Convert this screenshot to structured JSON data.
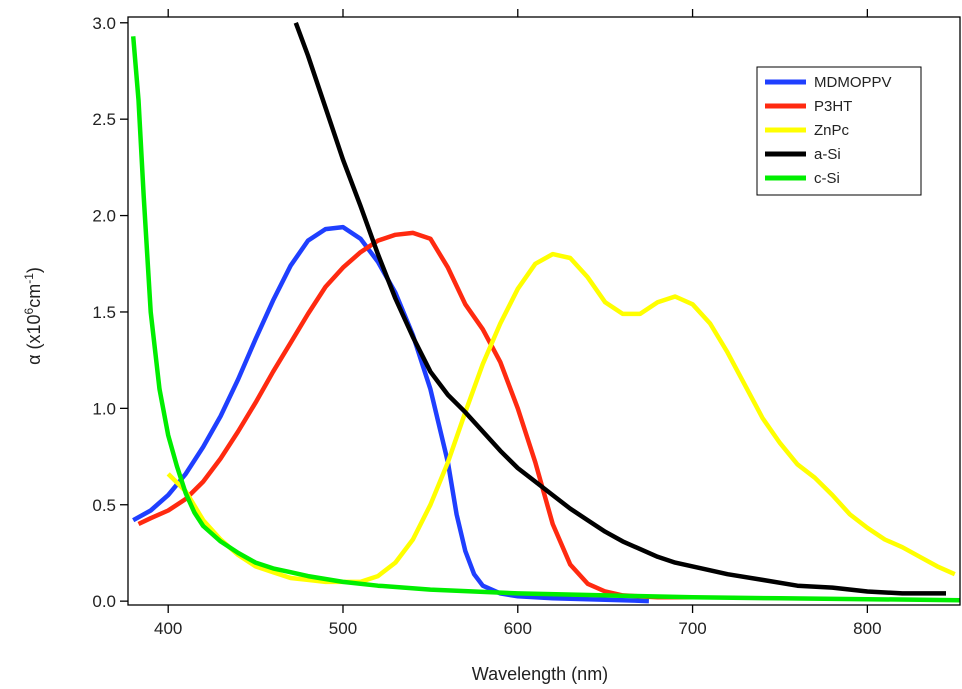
{
  "chart_data": {
    "type": "line",
    "title": "",
    "xlabel": "Wavelength  (nm)",
    "ylabel_main": "α (x10",
    "ylabel_sup1": "6",
    "ylabel_mid": "cm",
    "ylabel_sup2": "-1",
    "ylabel_end": ")",
    "xlim": [
      377,
      853
    ],
    "ylim": [
      -0.02,
      3.03
    ],
    "xticks": [
      400,
      500,
      600,
      700,
      800
    ],
    "yticks": [
      0.0,
      0.5,
      1.0,
      1.5,
      2.0,
      2.5,
      3.0
    ],
    "xtick_labels": [
      "400",
      "500",
      "600",
      "700",
      "800"
    ],
    "ytick_labels": [
      "0.0",
      "0.5",
      "1.0",
      "1.5",
      "2.0",
      "2.5",
      "3.0"
    ],
    "grid": false,
    "legend": "top-right",
    "series": [
      {
        "name": "MDMOPPV",
        "color": "#1f3fff",
        "x": [
          380,
          390,
          400,
          410,
          420,
          430,
          440,
          450,
          460,
          470,
          480,
          490,
          500,
          510,
          520,
          530,
          540,
          550,
          560,
          565,
          570,
          575,
          580,
          590,
          600,
          620,
          640,
          660,
          675
        ],
        "y": [
          0.42,
          0.47,
          0.55,
          0.66,
          0.8,
          0.96,
          1.15,
          1.36,
          1.56,
          1.74,
          1.87,
          1.93,
          1.94,
          1.88,
          1.76,
          1.6,
          1.38,
          1.1,
          0.72,
          0.45,
          0.26,
          0.14,
          0.08,
          0.04,
          0.025,
          0.015,
          0.01,
          0.005,
          0.0
        ]
      },
      {
        "name": "P3HT",
        "color": "#ff2a10",
        "x": [
          383,
          390,
          400,
          410,
          420,
          430,
          440,
          450,
          460,
          470,
          480,
          490,
          500,
          510,
          520,
          530,
          540,
          550,
          560,
          570,
          580,
          590,
          600,
          610,
          620,
          630,
          640,
          650,
          660,
          680,
          700
        ],
        "y": [
          0.4,
          0.43,
          0.47,
          0.53,
          0.62,
          0.74,
          0.88,
          1.03,
          1.19,
          1.34,
          1.49,
          1.63,
          1.73,
          1.81,
          1.87,
          1.9,
          1.91,
          1.88,
          1.73,
          1.54,
          1.41,
          1.24,
          1.0,
          0.72,
          0.4,
          0.19,
          0.09,
          0.05,
          0.03,
          0.02,
          0.02
        ]
      },
      {
        "name": "ZnPc",
        "color": "#ffff00",
        "x": [
          400,
          410,
          420,
          430,
          440,
          450,
          460,
          470,
          480,
          490,
          500,
          510,
          520,
          530,
          540,
          550,
          560,
          570,
          580,
          590,
          600,
          610,
          620,
          630,
          640,
          650,
          660,
          670,
          680,
          690,
          700,
          710,
          720,
          730,
          740,
          750,
          760,
          770,
          780,
          790,
          800,
          810,
          820,
          830,
          840,
          850
        ],
        "y": [
          0.66,
          0.57,
          0.42,
          0.32,
          0.24,
          0.18,
          0.15,
          0.12,
          0.11,
          0.1,
          0.1,
          0.1,
          0.13,
          0.2,
          0.32,
          0.5,
          0.72,
          0.98,
          1.23,
          1.44,
          1.62,
          1.75,
          1.8,
          1.78,
          1.68,
          1.55,
          1.49,
          1.49,
          1.55,
          1.58,
          1.54,
          1.44,
          1.29,
          1.12,
          0.95,
          0.82,
          0.71,
          0.64,
          0.55,
          0.45,
          0.38,
          0.32,
          0.28,
          0.23,
          0.18,
          0.14
        ]
      },
      {
        "name": "a-Si",
        "color": "#000000",
        "x": [
          473,
          480,
          490,
          500,
          510,
          520,
          530,
          540,
          550,
          560,
          570,
          580,
          590,
          600,
          610,
          620,
          630,
          640,
          650,
          660,
          670,
          680,
          690,
          700,
          710,
          720,
          740,
          760,
          780,
          800,
          820,
          845
        ],
        "y": [
          3.0,
          2.83,
          2.56,
          2.29,
          2.05,
          1.8,
          1.57,
          1.37,
          1.19,
          1.07,
          0.98,
          0.88,
          0.78,
          0.69,
          0.62,
          0.55,
          0.48,
          0.42,
          0.36,
          0.31,
          0.27,
          0.23,
          0.2,
          0.18,
          0.16,
          0.14,
          0.11,
          0.08,
          0.07,
          0.05,
          0.04,
          0.04
        ]
      },
      {
        "name": "c-Si",
        "color": "#00ee00",
        "x": [
          380,
          383,
          386,
          390,
          395,
          400,
          405,
          410,
          415,
          420,
          430,
          440,
          450,
          460,
          470,
          480,
          500,
          520,
          550,
          600,
          650,
          700,
          750,
          800,
          853
        ],
        "y": [
          2.93,
          2.6,
          2.1,
          1.5,
          1.1,
          0.86,
          0.7,
          0.56,
          0.46,
          0.39,
          0.31,
          0.25,
          0.2,
          0.17,
          0.15,
          0.13,
          0.1,
          0.08,
          0.06,
          0.04,
          0.03,
          0.02,
          0.015,
          0.01,
          0.005
        ]
      }
    ]
  }
}
